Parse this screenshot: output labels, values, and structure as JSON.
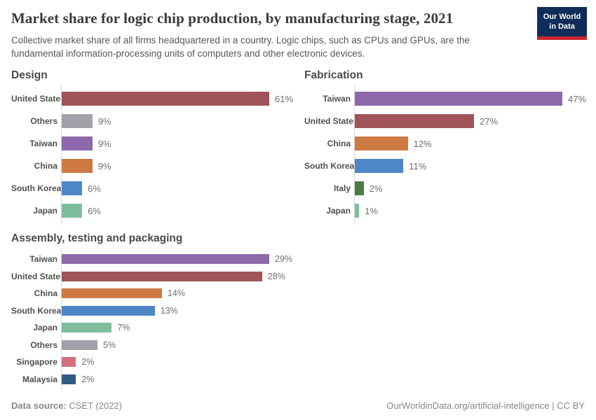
{
  "header": {
    "title": "Market share for logic chip production, by manufacturing stage, 2021",
    "subtitle": "Collective market share of all firms headquartered in a country. Logic chips, such as CPUs and GPUs, are the fundamental information-processing units of computers and other electronic devices.",
    "logo": {
      "line1": "Our World",
      "line2": "in Data",
      "bg_color": "#102d59",
      "stripe_color": "#c7252b"
    }
  },
  "chart_data": [
    {
      "type": "bar",
      "orientation": "horizontal",
      "title": "Design",
      "unit": "%",
      "xlim": [
        0,
        61
      ],
      "categories": [
        "United States",
        "Others",
        "Taiwan",
        "China",
        "South Korea",
        "Japan"
      ],
      "values": [
        61,
        9,
        9,
        9,
        6,
        6
      ],
      "value_labels": [
        "61%",
        "9%",
        "9%",
        "9%",
        "6%",
        "6%"
      ],
      "colors": [
        "#a0545a",
        "#a0a1a9",
        "#8d69ab",
        "#cd7a42",
        "#4f86c6",
        "#7fbd9c"
      ]
    },
    {
      "type": "bar",
      "orientation": "horizontal",
      "title": "Fabrication",
      "unit": "%",
      "xlim": [
        0,
        47
      ],
      "categories": [
        "Taiwan",
        "United States",
        "China",
        "South Korea",
        "Italy",
        "Japan"
      ],
      "values": [
        47,
        27,
        12,
        11,
        2,
        1
      ],
      "value_labels": [
        "47%",
        "27%",
        "12%",
        "11%",
        "2%",
        "1%"
      ],
      "colors": [
        "#8d69ab",
        "#a0545a",
        "#cd7a42",
        "#4f86c6",
        "#4d7c47",
        "#7fbd9c"
      ]
    },
    {
      "type": "bar",
      "orientation": "horizontal",
      "title": "Assembly, testing and packaging",
      "unit": "%",
      "xlim": [
        0,
        29
      ],
      "categories": [
        "Taiwan",
        "United States",
        "China",
        "South Korea",
        "Japan",
        "Others",
        "Singapore",
        "Malaysia"
      ],
      "values": [
        29,
        28,
        14,
        13,
        7,
        5,
        2,
        2
      ],
      "value_labels": [
        "29%",
        "28%",
        "14%",
        "13%",
        "7%",
        "5%",
        "2%",
        "2%"
      ],
      "colors": [
        "#8d69ab",
        "#a0545a",
        "#cd7a42",
        "#4f86c6",
        "#7fbd9c",
        "#a0a1a9",
        "#d0707f",
        "#305a86"
      ]
    }
  ],
  "footer": {
    "source_label": "Data source:",
    "source_value": " CSET (2022)",
    "right_text": "OurWorldinData.org/artificial-intelligence | CC BY"
  }
}
